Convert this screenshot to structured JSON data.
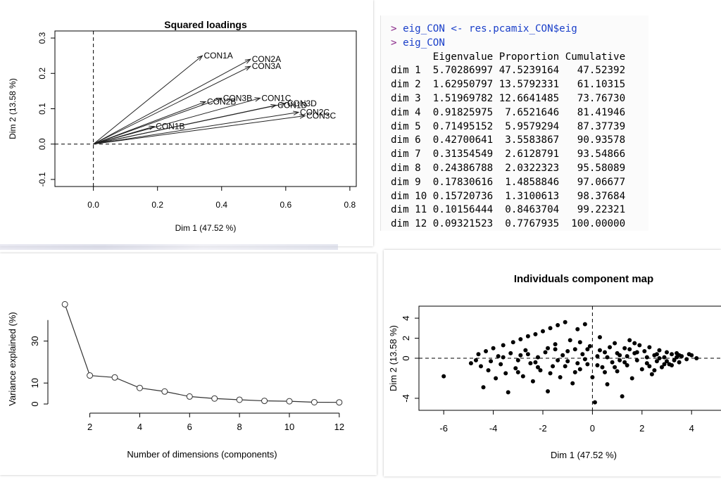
{
  "console": {
    "prompt": ">",
    "lines": [
      "eig_CON <- res.pcamix_CON$eig",
      "eig_CON"
    ],
    "header": [
      "Eigenvalue",
      "Proportion",
      "Cumulative"
    ],
    "rows": [
      [
        "dim 1",
        "5.70286997",
        "47.5239164",
        "47.52392"
      ],
      [
        "dim 2",
        "1.62950797",
        "13.5792331",
        "61.10315"
      ],
      [
        "dim 3",
        "1.51969782",
        "12.6641485",
        "73.76730"
      ],
      [
        "dim 4",
        "0.91825975",
        "7.6521646",
        "81.41946"
      ],
      [
        "dim 5",
        "0.71495152",
        "5.9579294",
        "87.37739"
      ],
      [
        "dim 6",
        "0.42700641",
        "3.5583867",
        "90.93578"
      ],
      [
        "dim 7",
        "0.31354549",
        "2.6128791",
        "93.54866"
      ],
      [
        "dim 8",
        "0.24386788",
        "2.0322323",
        "95.58089"
      ],
      [
        "dim 9",
        "0.17830616",
        "1.4858846",
        "97.06677"
      ],
      [
        "dim 10",
        "0.15720736",
        "1.3100613",
        "98.37684"
      ],
      [
        "dim 11",
        "0.10156444",
        "0.8463704",
        "99.22321"
      ],
      [
        "dim 12",
        "0.09321523",
        "0.7767935",
        "100.00000"
      ]
    ]
  },
  "chart_data": [
    {
      "type": "line",
      "subtype": "arrows",
      "title": "Squared loadings",
      "xlabel": "Dim 1 (47.52 %)",
      "ylabel": "Dim 2 (13.58 %)",
      "xlim": [
        -0.12,
        0.82
      ],
      "ylim": [
        -0.12,
        0.32
      ],
      "xticks": [
        "0.0",
        "0.2",
        "0.4",
        "0.6",
        "0.8"
      ],
      "yticks": [
        "-0.1",
        "0.0",
        "0.1",
        "0.2",
        "0.3"
      ],
      "arrows": [
        {
          "label": "CON1A",
          "x": 0.34,
          "y": 0.25
        },
        {
          "label": "CON2A",
          "x": 0.49,
          "y": 0.24
        },
        {
          "label": "CON3A",
          "x": 0.49,
          "y": 0.22
        },
        {
          "label": "CON1B",
          "x": 0.19,
          "y": 0.05
        },
        {
          "label": "CON2B",
          "x": 0.35,
          "y": 0.12
        },
        {
          "label": "CON3B",
          "x": 0.4,
          "y": 0.13
        },
        {
          "label": "CON1C",
          "x": 0.52,
          "y": 0.13
        },
        {
          "label": "CON1D",
          "x": 0.57,
          "y": 0.11
        },
        {
          "label": "CON3D",
          "x": 0.6,
          "y": 0.115
        },
        {
          "label": "CON2C",
          "x": 0.64,
          "y": 0.09
        },
        {
          "label": "CON3C",
          "x": 0.66,
          "y": 0.08
        }
      ]
    },
    {
      "type": "line",
      "title": "",
      "xlabel": "Number of dimensions (components)",
      "ylabel": "Variance explained (%)",
      "xlim": [
        0.6,
        12.4
      ],
      "ylim": [
        -1,
        50
      ],
      "xticks": [
        "2",
        "4",
        "6",
        "8",
        "10",
        "12"
      ],
      "yticks": [
        "0",
        "10",
        "30"
      ],
      "x": [
        1,
        2,
        3,
        4,
        5,
        6,
        7,
        8,
        9,
        10,
        11,
        12
      ],
      "values": [
        47.52,
        13.58,
        12.66,
        7.65,
        5.96,
        3.56,
        2.61,
        2.03,
        1.49,
        1.31,
        0.85,
        0.78
      ]
    },
    {
      "type": "scatter",
      "title": "Individuals component map",
      "xlabel": "Dim 1 (47.52 %)",
      "ylabel": "Dim 2 (13.58 %)",
      "xlim": [
        -7,
        5.5
      ],
      "ylim": [
        -5.2,
        5.2
      ],
      "xticks": [
        "-6",
        "-4",
        "-2",
        "0",
        "2",
        "4"
      ],
      "yticks": [
        "-4",
        "0",
        "2",
        "4"
      ],
      "points": [
        [
          -6.0,
          -1.8
        ],
        [
          -4.9,
          -0.5
        ],
        [
          -4.7,
          -0.2
        ],
        [
          -4.6,
          0.4
        ],
        [
          -4.5,
          -0.8
        ],
        [
          -4.4,
          -2.9
        ],
        [
          -4.3,
          0.7
        ],
        [
          -4.2,
          -1.2
        ],
        [
          -4.1,
          -0.3
        ],
        [
          -4.0,
          1.0
        ],
        [
          -3.9,
          -2.0
        ],
        [
          -3.8,
          0.2
        ],
        [
          -3.7,
          -0.6
        ],
        [
          -3.6,
          1.3
        ],
        [
          -3.5,
          -1.5
        ],
        [
          -3.4,
          -3.4
        ],
        [
          -3.3,
          0.5
        ],
        [
          -3.2,
          1.6
        ],
        [
          -3.1,
          -1.0
        ],
        [
          -3.0,
          -0.2
        ],
        [
          -2.9,
          1.9
        ],
        [
          -2.8,
          -1.8
        ],
        [
          -2.7,
          0.8
        ],
        [
          -2.6,
          2.2
        ],
        [
          -2.5,
          -0.5
        ],
        [
          -2.4,
          -2.3
        ],
        [
          -2.3,
          2.4
        ],
        [
          -2.2,
          0.1
        ],
        [
          -2.1,
          -1.2
        ],
        [
          -2.0,
          2.7
        ],
        [
          -1.9,
          0.6
        ],
        [
          -1.8,
          -3.3
        ],
        [
          -1.7,
          3.0
        ],
        [
          -1.6,
          -0.8
        ],
        [
          -1.5,
          1.4
        ],
        [
          -1.4,
          3.3
        ],
        [
          -1.3,
          -1.9
        ],
        [
          -1.2,
          0.3
        ],
        [
          -1.1,
          3.6
        ],
        [
          -1.0,
          -0.3
        ],
        [
          -0.9,
          1.8
        ],
        [
          -0.8,
          -2.5
        ],
        [
          -0.7,
          0.9
        ],
        [
          -0.6,
          2.9
        ],
        [
          -0.5,
          -1.1
        ],
        [
          -0.4,
          0.4
        ],
        [
          -0.3,
          3.4
        ],
        [
          -0.2,
          -0.6
        ],
        [
          -0.1,
          1.2
        ],
        [
          0.0,
          -1.9
        ],
        [
          0.1,
          -4.4
        ],
        [
          0.2,
          0.2
        ],
        [
          0.3,
          2.1
        ],
        [
          0.4,
          -0.9
        ],
        [
          0.5,
          0.6
        ],
        [
          0.6,
          -2.6
        ],
        [
          0.7,
          1.1
        ],
        [
          0.8,
          -0.4
        ],
        [
          0.9,
          1.5
        ],
        [
          1.0,
          -1.3
        ],
        [
          1.1,
          0.3
        ],
        [
          1.2,
          -3.8
        ],
        [
          1.3,
          1.0
        ],
        [
          1.4,
          -0.7
        ],
        [
          1.5,
          1.8
        ],
        [
          1.6,
          -2.0
        ],
        [
          1.7,
          0.5
        ],
        [
          1.8,
          -0.2
        ],
        [
          1.9,
          1.3
        ],
        [
          2.0,
          -1.1
        ],
        [
          2.1,
          0.7
        ],
        [
          2.2,
          -0.5
        ],
        [
          2.3,
          1.1
        ],
        [
          2.4,
          -1.6
        ],
        [
          2.5,
          0.3
        ],
        [
          2.6,
          -0.3
        ],
        [
          2.7,
          0.8
        ],
        [
          2.8,
          -0.9
        ],
        [
          2.9,
          0.1
        ],
        [
          3.0,
          0.6
        ],
        [
          3.1,
          -0.6
        ],
        [
          3.2,
          0.4
        ],
        [
          3.3,
          -0.2
        ],
        [
          3.4,
          0.5
        ],
        [
          3.5,
          -0.4
        ],
        [
          3.6,
          0.2
        ],
        [
          3.8,
          -0.1
        ],
        [
          4.0,
          0.3
        ],
        [
          4.2,
          0.0
        ],
        [
          -3.6,
          0.1
        ],
        [
          -3.0,
          -1.4
        ],
        [
          -2.6,
          0.4
        ],
        [
          -2.2,
          -0.9
        ],
        [
          -1.8,
          1.0
        ],
        [
          -1.4,
          -0.2
        ],
        [
          -1.0,
          0.7
        ],
        [
          -0.6,
          -0.5
        ],
        [
          -0.2,
          0.9
        ],
        [
          0.2,
          -0.7
        ],
        [
          0.6,
          0.1
        ],
        [
          1.0,
          0.5
        ],
        [
          1.4,
          0.2
        ],
        [
          1.8,
          0.6
        ],
        [
          2.2,
          0.1
        ],
        [
          2.6,
          0.4
        ],
        [
          3.0,
          -0.3
        ],
        [
          3.4,
          0.1
        ],
        [
          -2.9,
          0.3
        ],
        [
          -2.3,
          -0.4
        ],
        [
          -1.7,
          -1.5
        ],
        [
          -1.1,
          -0.8
        ],
        [
          -0.5,
          1.6
        ],
        [
          0.5,
          -1.4
        ],
        [
          1.1,
          -0.2
        ],
        [
          1.7,
          1.5
        ],
        [
          2.3,
          -0.8
        ],
        [
          2.9,
          -0.6
        ],
        [
          3.5,
          0.3
        ],
        [
          -1.5,
          0.9
        ],
        [
          -0.7,
          -1.4
        ],
        [
          0.9,
          -0.9
        ],
        [
          1.5,
          0.9
        ],
        [
          2.5,
          -1.2
        ],
        [
          3.2,
          -0.7
        ],
        [
          3.9,
          0.4
        ],
        [
          0.3,
          0.8
        ],
        [
          -0.3,
          -0.1
        ],
        [
          1.3,
          -0.4
        ],
        [
          2.7,
          0.0
        ]
      ]
    }
  ]
}
